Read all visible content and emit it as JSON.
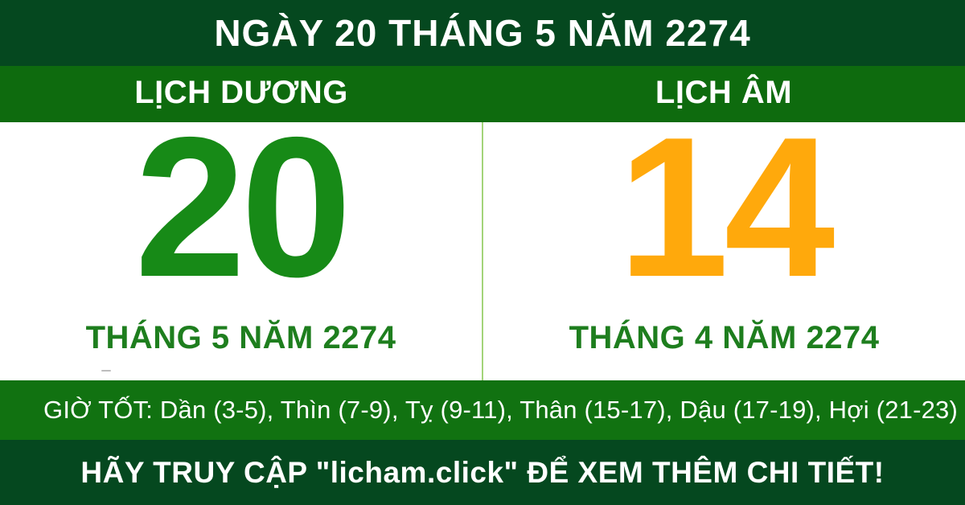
{
  "banner": {
    "title": "NGÀY 20 THÁNG 5 NĂM 2274"
  },
  "calendars": {
    "solar": {
      "header": "LỊCH DƯƠNG",
      "day": "20",
      "month_year": "THÁNG 5 NĂM 2274"
    },
    "lunar": {
      "header": "LỊCH ÂM",
      "day": "14",
      "month_year": "THÁNG 4 NĂM 2274"
    }
  },
  "good_hours": {
    "text": "GIỜ TỐT: Dần (3-5), Thìn (7-9), Tỵ (9-11), Thân (15-17), Dậu (17-19), Hợi (21-23)"
  },
  "footer": {
    "cta": "HÃY TRUY CẬP \"licham.click\" ĐỂ XEM THÊM CHI TIẾT!"
  },
  "colors": {
    "banner_green": "#05481f",
    "row_green": "#0e6b0e",
    "hours_green": "#117211",
    "solar_green": "#178a17",
    "lunar_orange": "#ffa90c",
    "title_green": "#1e7e1e",
    "divider_green": "#a3d47a"
  }
}
